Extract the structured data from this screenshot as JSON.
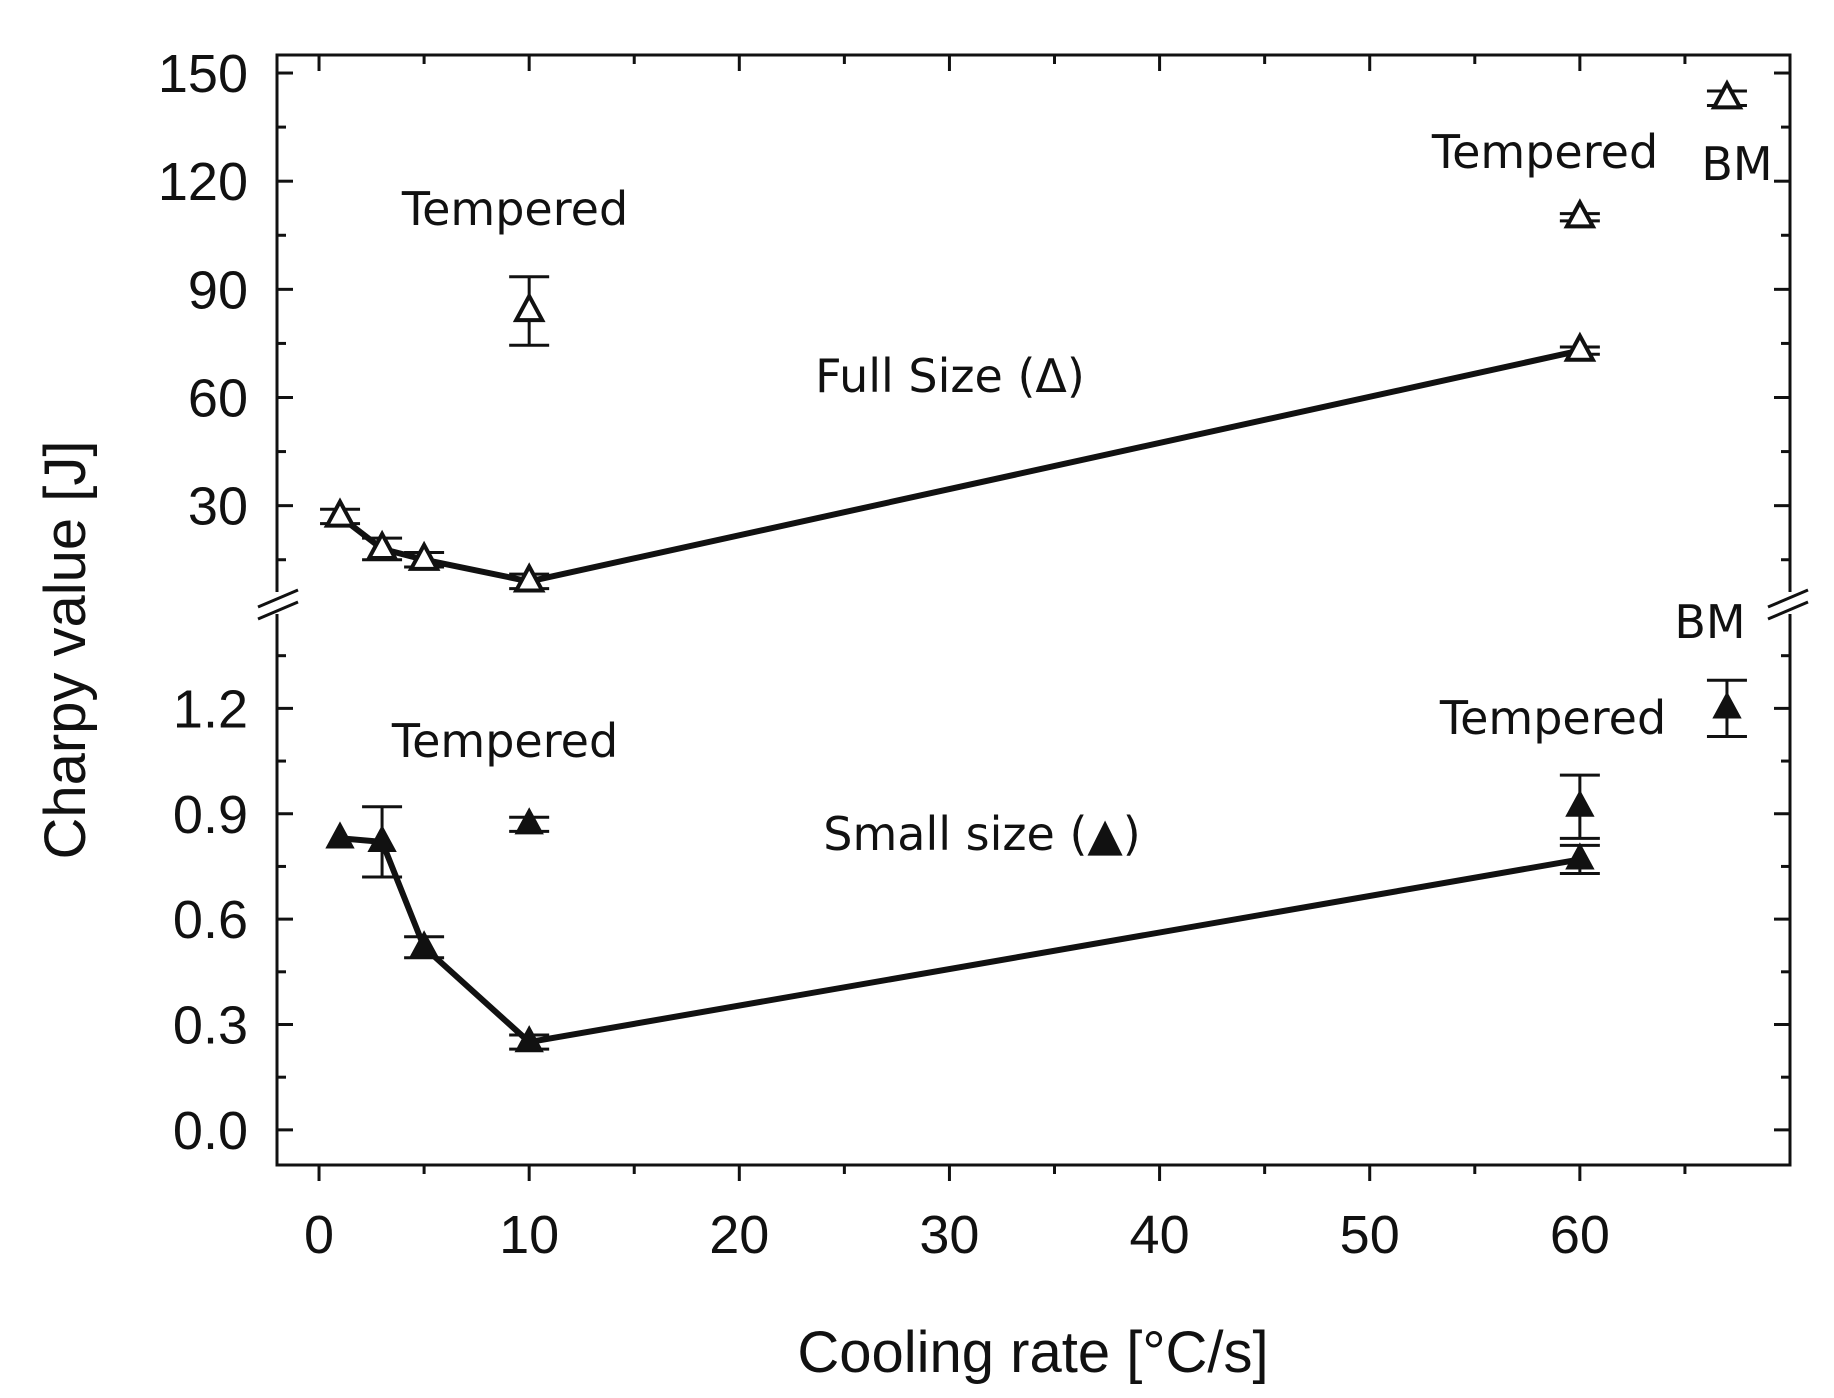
{
  "chart_data": {
    "type": "scatter",
    "xlabel": "Cooling rate [°C/s]",
    "ylabel": "Charpy value [J]",
    "xlim": [
      -2,
      70
    ],
    "x_ticks": [
      "0",
      "10",
      "20",
      "30",
      "40",
      "50",
      "60"
    ],
    "x_tick_values": [
      0,
      10,
      20,
      30,
      40,
      50,
      60
    ],
    "broken_y_axis": true,
    "upper_panel": {
      "ylim": [
        3,
        155
      ],
      "y_ticks": [
        "30",
        "60",
        "90",
        "120",
        "150"
      ],
      "y_tick_values": [
        30,
        60,
        90,
        120,
        150
      ]
    },
    "lower_panel": {
      "ylim": [
        -0.1,
        1.5
      ],
      "y_ticks": [
        "0.0",
        "0.3",
        "0.6",
        "0.9",
        "1.2"
      ],
      "y_tick_values": [
        0.0,
        0.3,
        0.6,
        0.9,
        1.2
      ]
    },
    "series": [
      {
        "name": "Full Size (Δ)",
        "panel": "upper",
        "marker": "open-triangle",
        "connected": true,
        "points": [
          {
            "x": 1,
            "y": 27,
            "err": 2
          },
          {
            "x": 3,
            "y": 18,
            "err": 3
          },
          {
            "x": 5,
            "y": 15,
            "err": 2
          },
          {
            "x": 10,
            "y": 9,
            "err": 2
          },
          {
            "x": 60,
            "y": 73,
            "err": 1
          }
        ]
      },
      {
        "name": "Full Size tempered",
        "panel": "upper",
        "marker": "open-triangle",
        "connected": false,
        "points": [
          {
            "x": 10,
            "y": 84,
            "err": 9.5
          },
          {
            "x": 60,
            "y": 110,
            "err": 1
          }
        ]
      },
      {
        "name": "Full Size BM",
        "panel": "upper",
        "marker": "open-triangle",
        "connected": false,
        "points": [
          {
            "x": 67,
            "y": 143,
            "err": 2
          }
        ]
      },
      {
        "name": "Small size (▲)",
        "panel": "lower",
        "marker": "filled-triangle",
        "connected": true,
        "points": [
          {
            "x": 1,
            "y": 0.83,
            "err": 0
          },
          {
            "x": 3,
            "y": 0.82,
            "err": 0.1
          },
          {
            "x": 5,
            "y": 0.52,
            "err": 0.03
          },
          {
            "x": 10,
            "y": 0.25,
            "err": 0.02
          },
          {
            "x": 60,
            "y": 0.77,
            "err": 0.04
          }
        ]
      },
      {
        "name": "Small size tempered",
        "panel": "lower",
        "marker": "filled-triangle",
        "connected": false,
        "points": [
          {
            "x": 10,
            "y": 0.87,
            "err": 0.02
          },
          {
            "x": 60,
            "y": 0.92,
            "err": 0.09
          }
        ]
      },
      {
        "name": "Small size BM",
        "panel": "lower",
        "marker": "filled-triangle",
        "connected": false,
        "points": [
          {
            "x": 67,
            "y": 1.2,
            "err": 0.08
          }
        ]
      }
    ],
    "annotations": {
      "upper_tempered_left": "Tempered",
      "upper_tempered_right": "Tempered",
      "upper_bm": "BM",
      "full_size_label": "Full Size (Δ)",
      "lower_tempered_left": "Tempered",
      "lower_tempered_right": "Tempered",
      "lower_bm": "BM",
      "small_size_label": "Small size (▲)"
    }
  }
}
